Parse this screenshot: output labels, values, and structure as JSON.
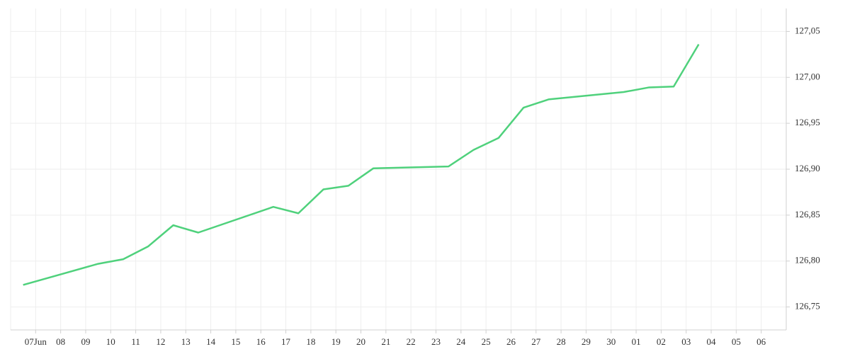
{
  "chart_data": {
    "type": "line",
    "x": [
      6.5,
      9.5,
      10.5,
      11.5,
      12.5,
      13.5,
      16.5,
      17.5,
      18.5,
      19.5,
      20.5,
      23.5,
      24.5,
      25.5,
      26.5,
      27.5,
      30.5,
      31.5,
      32.5,
      33.5
    ],
    "series": [
      {
        "color": "#4fd17c",
        "values": [
          126.774,
          126.797,
          126.802,
          126.816,
          126.839,
          126.831,
          126.859,
          126.852,
          126.878,
          126.882,
          126.901,
          126.903,
          126.921,
          126.934,
          126.967,
          126.976,
          126.984,
          126.989,
          126.99,
          127.036
        ]
      }
    ],
    "xlim": [
      6,
      37
    ],
    "xticks": [
      {
        "value": 7,
        "label": "07Jun"
      },
      {
        "value": 8,
        "label": "08"
      },
      {
        "value": 9,
        "label": "09"
      },
      10,
      11,
      12,
      13,
      14,
      15,
      16,
      17,
      18,
      19,
      20,
      21,
      22,
      23,
      24,
      25,
      26,
      27,
      28,
      29,
      30,
      {
        "value": 31,
        "label": "01"
      },
      {
        "value": 32,
        "label": "02"
      },
      {
        "value": 33,
        "label": "03"
      },
      {
        "value": 34,
        "label": "04"
      },
      {
        "value": 35,
        "label": "05"
      },
      {
        "value": 36,
        "label": "06"
      }
    ],
    "ylim": [
      126.725,
      127.075
    ],
    "yticks": [
      {
        "value": 126.75,
        "label": "126,75"
      },
      {
        "value": 126.8,
        "label": "126,80"
      },
      {
        "value": 126.85,
        "label": "126,85"
      },
      {
        "value": 126.9,
        "label": "126,90"
      },
      {
        "value": 126.95,
        "label": "126,95"
      },
      {
        "value": 127,
        "label": "127,00"
      },
      {
        "value": 127.05,
        "label": "127,05"
      }
    ],
    "grid": true
  }
}
